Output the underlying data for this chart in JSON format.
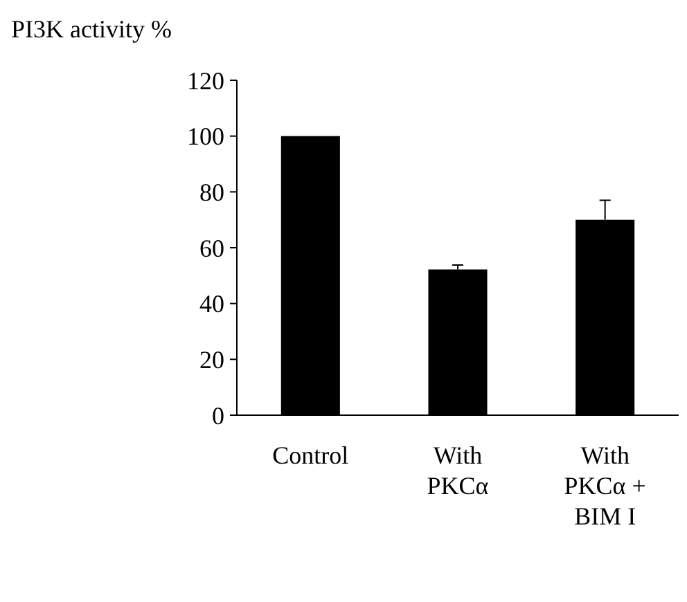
{
  "chart_data": {
    "type": "bar",
    "ylabel": "PI3K activity %",
    "categories": [
      "Control",
      "With\nPKCα",
      "With\nPKCα +\nBIM I"
    ],
    "values": [
      100,
      52.2,
      70
    ],
    "color": "#000000",
    "errors": [
      null,
      [
        52.2,
        53.8
      ],
      [
        70,
        77
      ]
    ],
    "ylim": [
      0,
      120
    ],
    "yticks": [
      0,
      20,
      40,
      60,
      80,
      100,
      120
    ],
    "grid": false
  }
}
